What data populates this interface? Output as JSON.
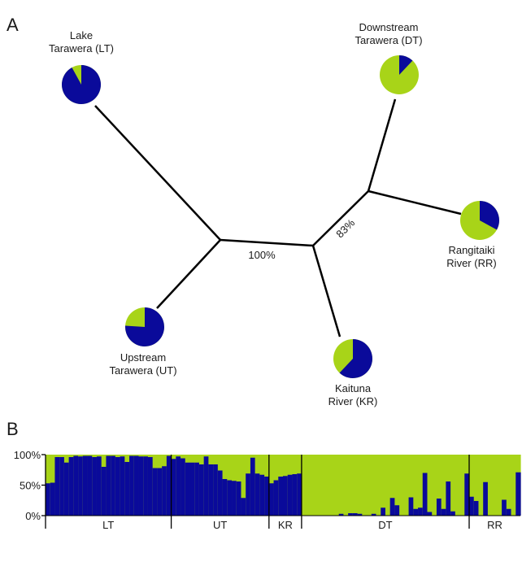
{
  "panel_labels": {
    "a": "A",
    "b": "B"
  },
  "colors": {
    "blue": "#0a0a9a",
    "green": "#a8d418",
    "line": "#000000"
  },
  "chart_data": [
    {
      "type": "pie",
      "panel": "A",
      "tree": {
        "bootstrap_labels": [
          "100%",
          "83%"
        ]
      },
      "populations": [
        {
          "id": "LT",
          "label_lines": [
            "Lake",
            "Tarawera (LT)"
          ],
          "blue": 0.92,
          "green": 0.08
        },
        {
          "id": "UT",
          "label_lines": [
            "Upstream",
            "Tarawera (UT)"
          ],
          "blue": 0.76,
          "green": 0.24
        },
        {
          "id": "KR",
          "label_lines": [
            "Kaituna",
            "River (KR)"
          ],
          "blue": 0.62,
          "green": 0.38
        },
        {
          "id": "RR",
          "label_lines": [
            "Rangitaiki",
            "River (RR)"
          ],
          "blue": 0.33,
          "green": 0.67
        },
        {
          "id": "DT",
          "label_lines": [
            "Downstream",
            "Tarawera (DT)"
          ],
          "blue": 0.12,
          "green": 0.88
        }
      ]
    },
    {
      "type": "bar",
      "panel": "B",
      "stacked": true,
      "ylim": [
        0,
        100
      ],
      "yticks": [
        "0%",
        "50%",
        "100%"
      ],
      "series_colors": [
        "#0a0a9a",
        "#a8d418"
      ],
      "groups": [
        {
          "label": "LT",
          "values": [
            53,
            54,
            96,
            96,
            87,
            96,
            98,
            97,
            98,
            98,
            96,
            97,
            80,
            98,
            98,
            96,
            97,
            88,
            98,
            98,
            97,
            97,
            96,
            78,
            78,
            81,
            98
          ]
        },
        {
          "label": "UT",
          "values": [
            93,
            97,
            94,
            87,
            87,
            87,
            84,
            97,
            84,
            84,
            74,
            60,
            58,
            57,
            56,
            29,
            69,
            95,
            69,
            67,
            64
          ]
        },
        {
          "label": "KR",
          "values": [
            53,
            58,
            64,
            65,
            67,
            68,
            69
          ]
        },
        {
          "label": "DT",
          "values": [
            0,
            0,
            0,
            0,
            0,
            0,
            0,
            0,
            3,
            0,
            4,
            4,
            3,
            0,
            0,
            3,
            0,
            13,
            0,
            29,
            17,
            0,
            0,
            30,
            11,
            13,
            70,
            6,
            0,
            28,
            11,
            56,
            7,
            0,
            0,
            69
          ]
        },
        {
          "label": "RR",
          "values": [
            31,
            24,
            0,
            55,
            0,
            0,
            0,
            26,
            11,
            0,
            71
          ]
        }
      ]
    }
  ]
}
